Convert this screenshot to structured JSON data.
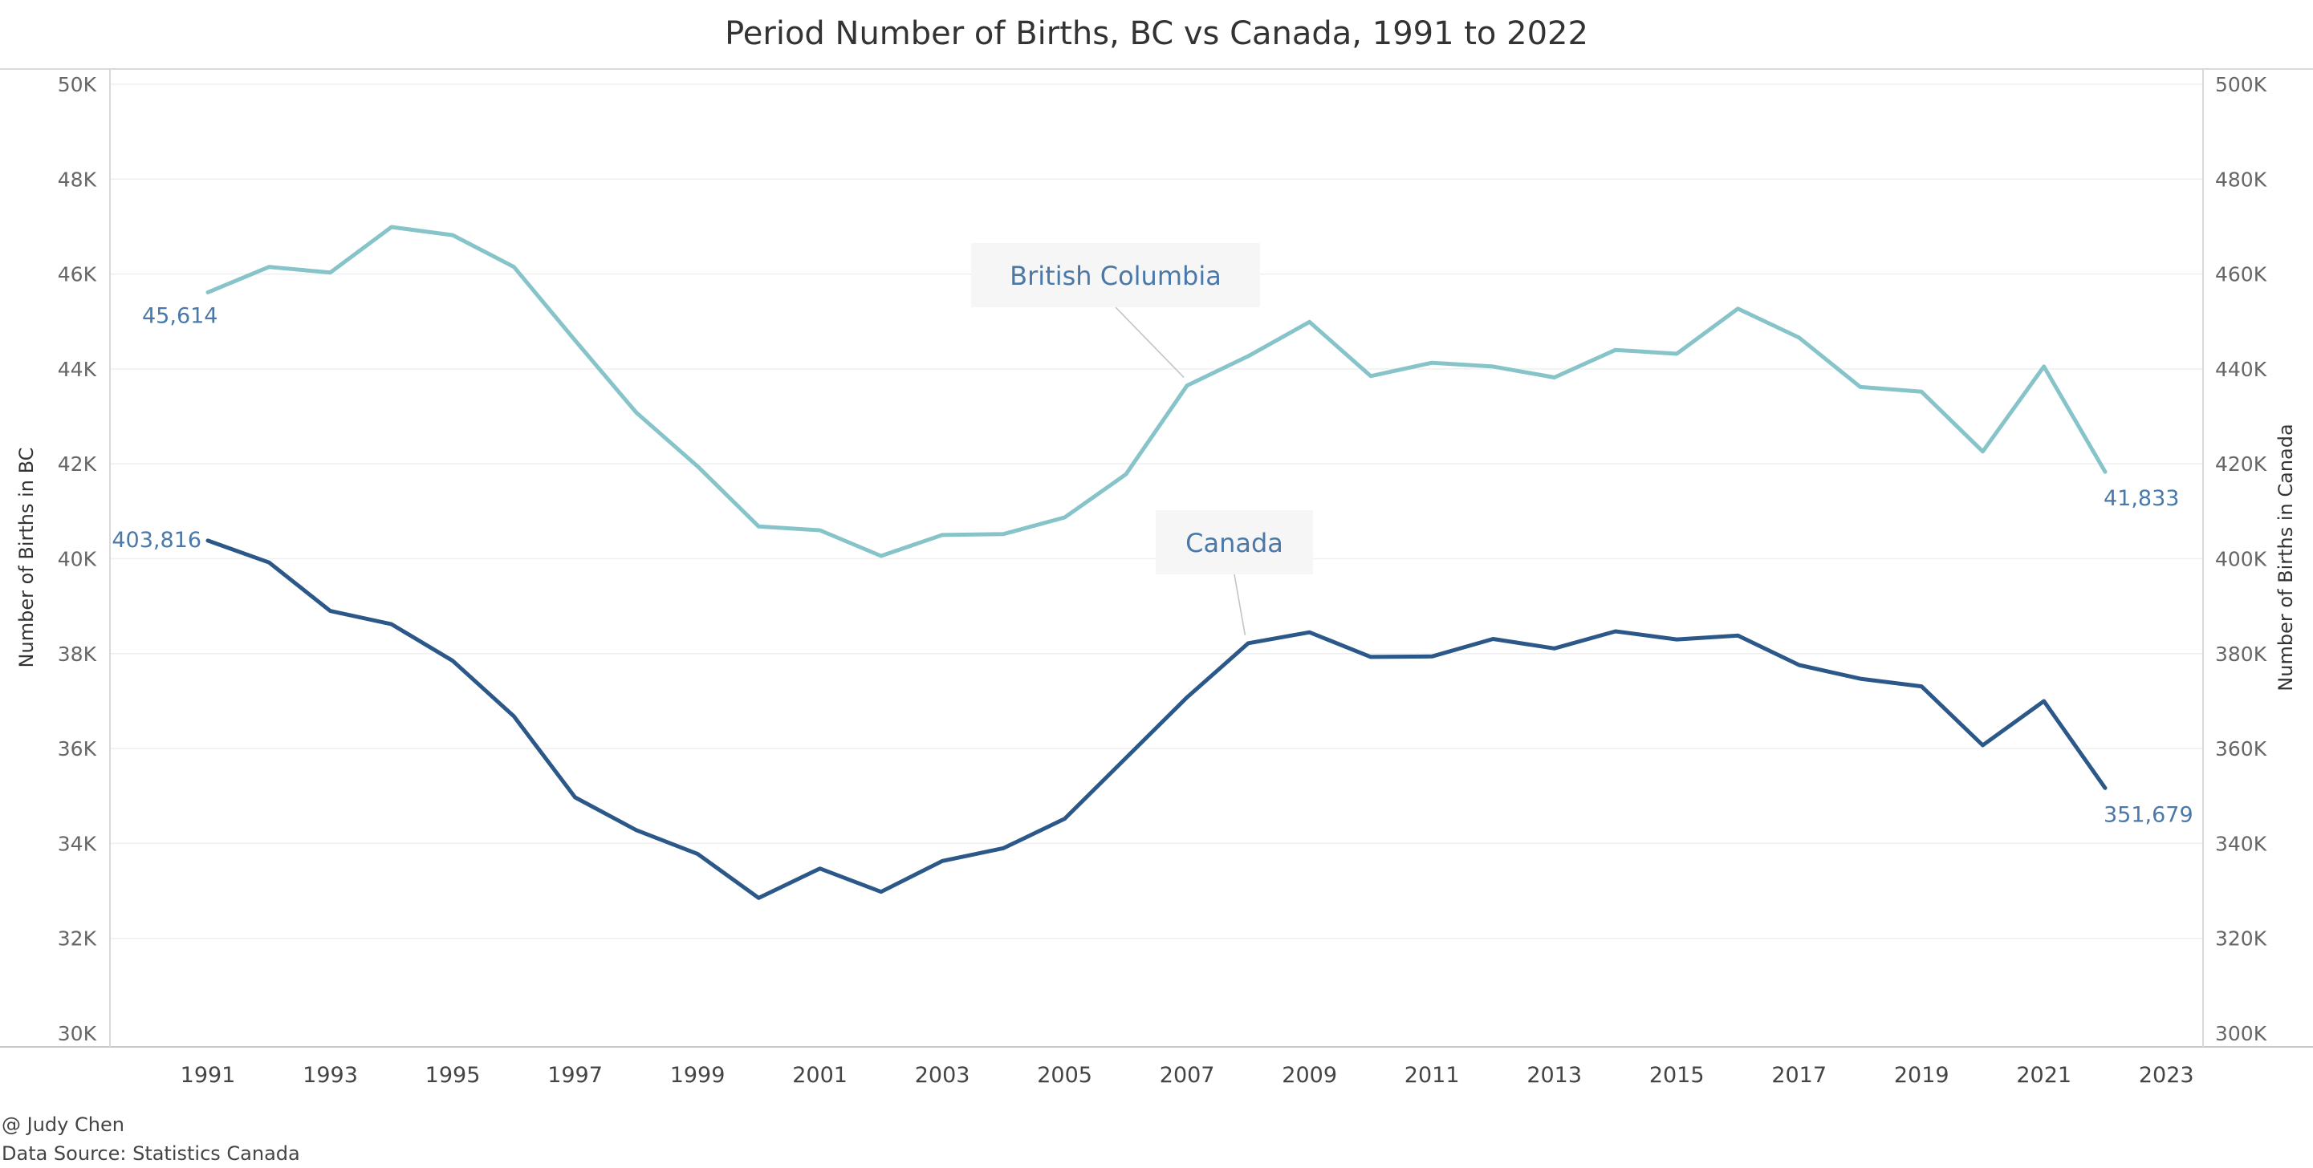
{
  "chart_data": {
    "type": "line",
    "title": "Period Number of Births, BC vs Canada, 1991 to 2022",
    "x": [
      1991,
      1992,
      1993,
      1994,
      1995,
      1996,
      1997,
      1998,
      1999,
      2000,
      2001,
      2002,
      2003,
      2004,
      2005,
      2006,
      2007,
      2008,
      2009,
      2010,
      2011,
      2012,
      2013,
      2014,
      2015,
      2016,
      2017,
      2018,
      2019,
      2020,
      2021,
      2022
    ],
    "xlim": [
      1989.4,
      2023.6
    ],
    "x_ticks": [
      "1991",
      "1993",
      "1995",
      "1997",
      "1999",
      "2001",
      "2003",
      "2005",
      "2007",
      "2009",
      "2011",
      "2013",
      "2015",
      "2017",
      "2019",
      "2021",
      "2023"
    ],
    "ylabel_left": "Number of Births in BC",
    "ylabel_right": "Number of Births in Canada",
    "ylim_left": [
      30000,
      50000
    ],
    "ylim_right": [
      300000,
      500000
    ],
    "y_ticks_left": [
      "30K",
      "32K",
      "34K",
      "36K",
      "38K",
      "40K",
      "42K",
      "44K",
      "46K",
      "48K",
      "50K"
    ],
    "y_ticks_right": [
      "300K",
      "320K",
      "340K",
      "360K",
      "380K",
      "400K",
      "420K",
      "440K",
      "460K",
      "480K",
      "500K"
    ],
    "grid": true,
    "series": [
      {
        "name": "British Columbia",
        "axis": "left",
        "color": "#86c4ca",
        "values": [
          45614,
          46150,
          46030,
          46990,
          46820,
          46150,
          44600,
          43080,
          41950,
          40680,
          40600,
          40060,
          40500,
          40520,
          40870,
          41780,
          43650,
          44270,
          44990,
          43850,
          44130,
          44050,
          43820,
          44400,
          44320,
          45270,
          44660,
          43620,
          43520,
          42260,
          44050,
          41833
        ],
        "first_label": "45,614",
        "last_label": "41,833"
      },
      {
        "name": "Canada",
        "axis": "right",
        "color": "#2b5888",
        "values": [
          403816,
          399200,
          389000,
          386200,
          378500,
          366800,
          349700,
          342800,
          337800,
          328500,
          334700,
          329800,
          336300,
          339000,
          345200,
          358000,
          370800,
          382200,
          384500,
          379300,
          379400,
          383100,
          381100,
          384700,
          383000,
          383800,
          377600,
          374700,
          373100,
          360700,
          370000,
          351679
        ],
        "first_label": "403,816",
        "last_label": "351,679"
      }
    ],
    "annotations": [
      {
        "text": "British Columbia",
        "series": 0,
        "year": 2007
      },
      {
        "text": "Canada",
        "series": 1,
        "year": 2008
      }
    ],
    "colors": {
      "label_text": "#4a78a8"
    }
  },
  "footer": {
    "author": "@ Judy Chen",
    "source": "Data Source: Statistics Canada"
  }
}
